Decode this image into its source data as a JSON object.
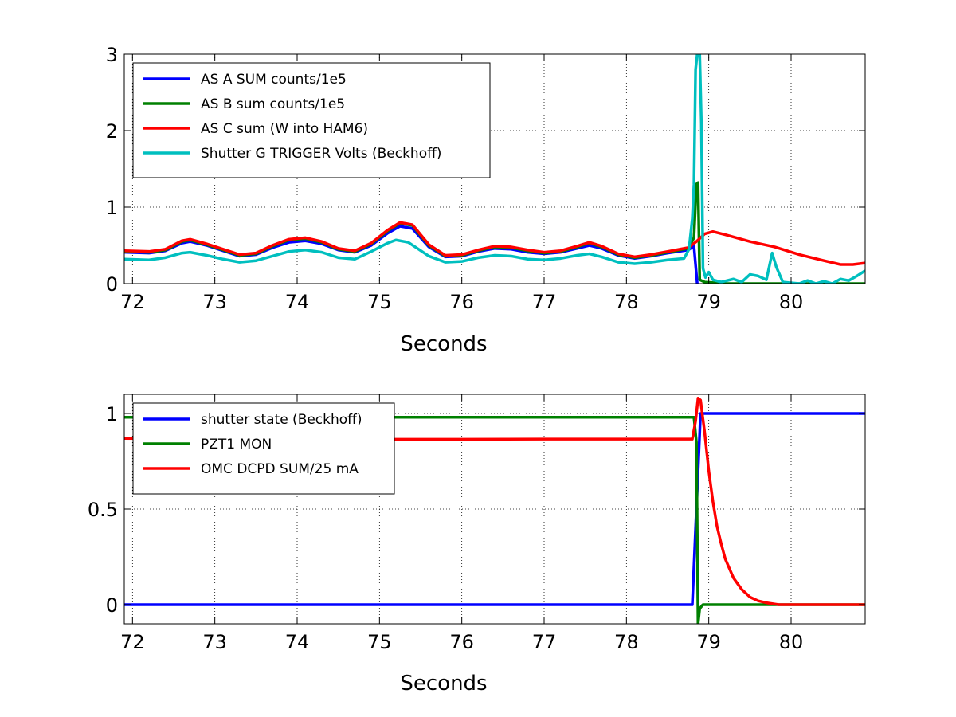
{
  "chart_data": [
    {
      "type": "line",
      "xlabel": "Seconds",
      "ylabel": "",
      "xlim": [
        71.9,
        80.9
      ],
      "ylim": [
        0,
        3
      ],
      "xticks": [
        72,
        73,
        74,
        75,
        76,
        77,
        78,
        79,
        80
      ],
      "yticks": [
        0,
        1,
        2,
        3
      ],
      "grid": true,
      "legend_position": "top-left",
      "series": [
        {
          "name": "AS A SUM counts/1e5",
          "color": "#0000ff",
          "points": [
            [
              71.9,
              0.41
            ],
            [
              72.2,
              0.4
            ],
            [
              72.4,
              0.43
            ],
            [
              72.6,
              0.53
            ],
            [
              72.7,
              0.55
            ],
            [
              72.9,
              0.5
            ],
            [
              73.1,
              0.43
            ],
            [
              73.3,
              0.36
            ],
            [
              73.5,
              0.38
            ],
            [
              73.7,
              0.47
            ],
            [
              73.9,
              0.54
            ],
            [
              74.1,
              0.56
            ],
            [
              74.3,
              0.52
            ],
            [
              74.5,
              0.44
            ],
            [
              74.7,
              0.41
            ],
            [
              74.9,
              0.5
            ],
            [
              75.1,
              0.66
            ],
            [
              75.25,
              0.75
            ],
            [
              75.4,
              0.72
            ],
            [
              75.6,
              0.48
            ],
            [
              75.8,
              0.35
            ],
            [
              76.0,
              0.36
            ],
            [
              76.2,
              0.42
            ],
            [
              76.4,
              0.46
            ],
            [
              76.6,
              0.45
            ],
            [
              76.8,
              0.41
            ],
            [
              77.0,
              0.39
            ],
            [
              77.2,
              0.41
            ],
            [
              77.4,
              0.46
            ],
            [
              77.55,
              0.5
            ],
            [
              77.7,
              0.46
            ],
            [
              77.9,
              0.37
            ],
            [
              78.1,
              0.33
            ],
            [
              78.3,
              0.36
            ],
            [
              78.5,
              0.4
            ],
            [
              78.75,
              0.44
            ],
            [
              78.82,
              0.49
            ],
            [
              78.86,
              0.0
            ]
          ]
        },
        {
          "name": "AS B sum counts/1e5",
          "color": "#008000",
          "points": [
            [
              71.9,
              0.42
            ],
            [
              72.2,
              0.41
            ],
            [
              72.4,
              0.44
            ],
            [
              72.6,
              0.55
            ],
            [
              72.7,
              0.57
            ],
            [
              72.9,
              0.51
            ],
            [
              73.1,
              0.44
            ],
            [
              73.3,
              0.37
            ],
            [
              73.5,
              0.39
            ],
            [
              73.7,
              0.49
            ],
            [
              73.9,
              0.57
            ],
            [
              74.1,
              0.59
            ],
            [
              74.3,
              0.54
            ],
            [
              74.5,
              0.45
            ],
            [
              74.7,
              0.42
            ],
            [
              74.9,
              0.52
            ],
            [
              75.1,
              0.69
            ],
            [
              75.25,
              0.79
            ],
            [
              75.4,
              0.76
            ],
            [
              75.6,
              0.5
            ],
            [
              75.8,
              0.36
            ],
            [
              76.0,
              0.37
            ],
            [
              76.2,
              0.43
            ],
            [
              76.4,
              0.48
            ],
            [
              76.6,
              0.47
            ],
            [
              76.8,
              0.43
            ],
            [
              77.0,
              0.4
            ],
            [
              77.2,
              0.42
            ],
            [
              77.4,
              0.48
            ],
            [
              77.55,
              0.53
            ],
            [
              77.7,
              0.48
            ],
            [
              77.9,
              0.38
            ],
            [
              78.1,
              0.34
            ],
            [
              78.3,
              0.37
            ],
            [
              78.5,
              0.41
            ],
            [
              78.75,
              0.46
            ],
            [
              78.82,
              0.6
            ],
            [
              78.85,
              1.3
            ],
            [
              78.87,
              1.32
            ],
            [
              78.89,
              0.05
            ],
            [
              78.95,
              0.02
            ],
            [
              79.2,
              0.0
            ],
            [
              80.0,
              0.0
            ],
            [
              80.9,
              0.0
            ]
          ]
        },
        {
          "name": "AS C sum (W into HAM6)",
          "color": "#ff0000",
          "points": [
            [
              71.9,
              0.43
            ],
            [
              72.2,
              0.42
            ],
            [
              72.4,
              0.45
            ],
            [
              72.6,
              0.56
            ],
            [
              72.7,
              0.58
            ],
            [
              72.9,
              0.52
            ],
            [
              73.1,
              0.45
            ],
            [
              73.3,
              0.38
            ],
            [
              73.5,
              0.4
            ],
            [
              73.7,
              0.5
            ],
            [
              73.9,
              0.58
            ],
            [
              74.1,
              0.6
            ],
            [
              74.3,
              0.55
            ],
            [
              74.5,
              0.46
            ],
            [
              74.7,
              0.43
            ],
            [
              74.9,
              0.53
            ],
            [
              75.1,
              0.7
            ],
            [
              75.25,
              0.8
            ],
            [
              75.4,
              0.77
            ],
            [
              75.6,
              0.51
            ],
            [
              75.8,
              0.37
            ],
            [
              76.0,
              0.38
            ],
            [
              76.2,
              0.44
            ],
            [
              76.4,
              0.49
            ],
            [
              76.6,
              0.48
            ],
            [
              76.8,
              0.44
            ],
            [
              77.0,
              0.41
            ],
            [
              77.2,
              0.43
            ],
            [
              77.4,
              0.49
            ],
            [
              77.55,
              0.54
            ],
            [
              77.7,
              0.49
            ],
            [
              77.9,
              0.39
            ],
            [
              78.1,
              0.35
            ],
            [
              78.3,
              0.38
            ],
            [
              78.5,
              0.42
            ],
            [
              78.75,
              0.47
            ],
            [
              78.85,
              0.55
            ],
            [
              78.95,
              0.65
            ],
            [
              79.05,
              0.68
            ],
            [
              79.2,
              0.64
            ],
            [
              79.5,
              0.55
            ],
            [
              79.8,
              0.48
            ],
            [
              80.1,
              0.38
            ],
            [
              80.4,
              0.3
            ],
            [
              80.6,
              0.25
            ],
            [
              80.75,
              0.25
            ],
            [
              80.9,
              0.27
            ]
          ]
        },
        {
          "name": "Shutter G TRIGGER Volts (Beckhoff)",
          "color": "#00bfbf",
          "points": [
            [
              71.9,
              0.32
            ],
            [
              72.2,
              0.31
            ],
            [
              72.4,
              0.34
            ],
            [
              72.6,
              0.4
            ],
            [
              72.7,
              0.41
            ],
            [
              72.9,
              0.37
            ],
            [
              73.1,
              0.32
            ],
            [
              73.3,
              0.28
            ],
            [
              73.5,
              0.3
            ],
            [
              73.7,
              0.36
            ],
            [
              73.9,
              0.42
            ],
            [
              74.1,
              0.44
            ],
            [
              74.3,
              0.41
            ],
            [
              74.5,
              0.34
            ],
            [
              74.7,
              0.32
            ],
            [
              74.9,
              0.42
            ],
            [
              75.1,
              0.53
            ],
            [
              75.2,
              0.57
            ],
            [
              75.35,
              0.54
            ],
            [
              75.6,
              0.36
            ],
            [
              75.8,
              0.28
            ],
            [
              76.0,
              0.29
            ],
            [
              76.2,
              0.34
            ],
            [
              76.4,
              0.37
            ],
            [
              76.6,
              0.36
            ],
            [
              76.8,
              0.32
            ],
            [
              77.0,
              0.31
            ],
            [
              77.2,
              0.33
            ],
            [
              77.4,
              0.37
            ],
            [
              77.55,
              0.39
            ],
            [
              77.7,
              0.35
            ],
            [
              77.9,
              0.28
            ],
            [
              78.1,
              0.26
            ],
            [
              78.3,
              0.28
            ],
            [
              78.5,
              0.31
            ],
            [
              78.7,
              0.33
            ],
            [
              78.76,
              0.45
            ],
            [
              78.8,
              0.85
            ],
            [
              78.82,
              1.3
            ],
            [
              78.84,
              2.8
            ],
            [
              78.86,
              3.0
            ],
            [
              78.89,
              3.0
            ],
            [
              78.91,
              2.1
            ],
            [
              78.93,
              0.2
            ],
            [
              78.96,
              0.08
            ],
            [
              79.0,
              0.15
            ],
            [
              79.05,
              0.05
            ],
            [
              79.15,
              0.02
            ],
            [
              79.3,
              0.06
            ],
            [
              79.4,
              0.02
            ],
            [
              79.5,
              0.12
            ],
            [
              79.6,
              0.1
            ],
            [
              79.7,
              0.05
            ],
            [
              79.77,
              0.4
            ],
            [
              79.82,
              0.22
            ],
            [
              79.9,
              0.02
            ],
            [
              80.1,
              0.0
            ],
            [
              80.2,
              0.04
            ],
            [
              80.3,
              0.0
            ],
            [
              80.4,
              0.03
            ],
            [
              80.5,
              0.0
            ],
            [
              80.6,
              0.06
            ],
            [
              80.7,
              0.04
            ],
            [
              80.8,
              0.1
            ],
            [
              80.9,
              0.17
            ]
          ]
        }
      ]
    },
    {
      "type": "line",
      "xlabel": "Seconds",
      "ylabel": "",
      "xlim": [
        71.9,
        80.9
      ],
      "ylim": [
        -0.1,
        1.1
      ],
      "xticks": [
        72,
        73,
        74,
        75,
        76,
        77,
        78,
        79,
        80
      ],
      "yticks": [
        0,
        0.5,
        1
      ],
      "grid": true,
      "legend_position": "top-left",
      "series": [
        {
          "name": "shutter state (Beckhoff)",
          "color": "#0000ff",
          "points": [
            [
              71.9,
              0.0
            ],
            [
              78.8,
              0.0
            ],
            [
              78.9,
              1.0
            ],
            [
              80.9,
              1.0
            ]
          ]
        },
        {
          "name": "PZT1 MON",
          "color": "#008000",
          "points": [
            [
              71.9,
              0.98
            ],
            [
              78.82,
              0.98
            ],
            [
              78.85,
              0.85
            ],
            [
              78.87,
              -0.1
            ],
            [
              78.89,
              -0.02
            ],
            [
              78.93,
              0.0
            ],
            [
              80.9,
              0.0
            ]
          ]
        },
        {
          "name": "OMC DCPD SUM/25 mA",
          "color": "#ff0000",
          "points": [
            [
              71.9,
              0.87
            ],
            [
              75.0,
              0.865
            ],
            [
              76.0,
              0.865
            ],
            [
              77.0,
              0.866
            ],
            [
              78.0,
              0.866
            ],
            [
              78.8,
              0.866
            ],
            [
              78.84,
              0.96
            ],
            [
              78.87,
              1.08
            ],
            [
              78.9,
              1.07
            ],
            [
              78.95,
              0.9
            ],
            [
              79.0,
              0.7
            ],
            [
              79.05,
              0.54
            ],
            [
              79.1,
              0.41
            ],
            [
              79.15,
              0.32
            ],
            [
              79.2,
              0.24
            ],
            [
              79.3,
              0.14
            ],
            [
              79.4,
              0.08
            ],
            [
              79.5,
              0.04
            ],
            [
              79.6,
              0.02
            ],
            [
              79.7,
              0.01
            ],
            [
              79.85,
              0.0
            ],
            [
              80.9,
              0.0
            ]
          ]
        }
      ]
    }
  ]
}
